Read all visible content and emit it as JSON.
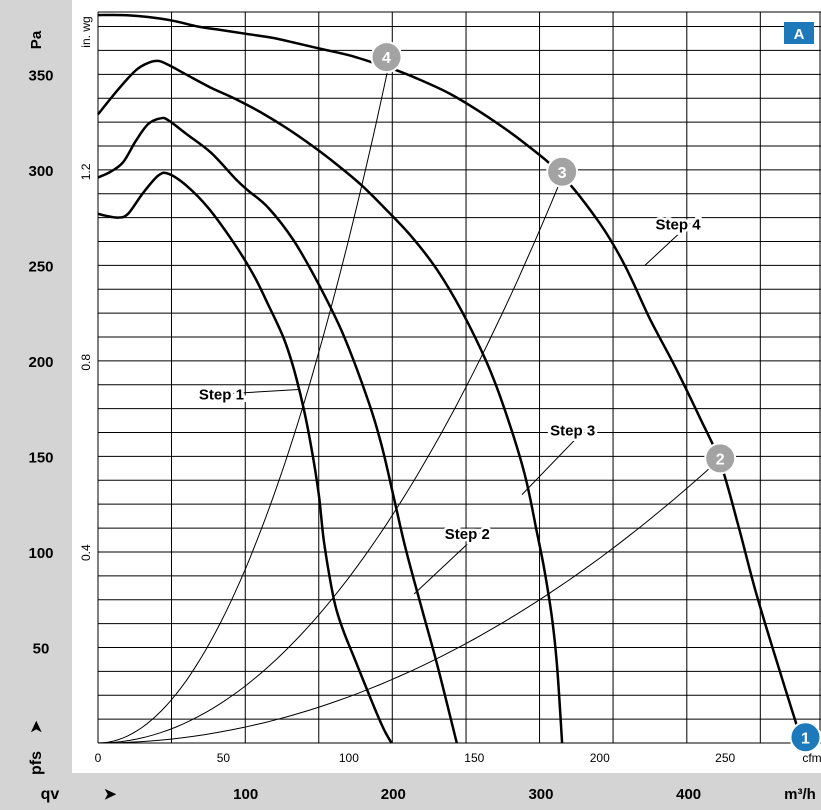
{
  "chart_data": {
    "type": "line",
    "panel_label": "A",
    "y_unit_left": "Pa",
    "y_unit_inner": "in. wg",
    "y_symbol": "pfs",
    "x_symbol": "qv",
    "x_unit_bottom": "m³/h",
    "x_unit_inner": "cfm",
    "arrow_glyph": "➤",
    "xlim_cfm": [
      0,
      285
    ],
    "ylim_pa": [
      0,
      380
    ],
    "y_ticks_pa": [
      {
        "value": 50,
        "label": "50"
      },
      {
        "value": 100,
        "label": "100"
      },
      {
        "value": 150,
        "label": "150"
      },
      {
        "value": 200,
        "label": "200"
      },
      {
        "value": 250,
        "label": "250"
      },
      {
        "value": 300,
        "label": "300"
      },
      {
        "value": 350,
        "label": "350"
      }
    ],
    "y_ticks_inwg": [
      {
        "value": 0.4,
        "label": "0.4"
      },
      {
        "value": 0.8,
        "label": "0.8"
      },
      {
        "value": 1.2,
        "label": "1.2"
      }
    ],
    "x_ticks_cfm": [
      {
        "value": 0,
        "label": "0"
      },
      {
        "value": 50,
        "label": "50"
      },
      {
        "value": 100,
        "label": "100"
      },
      {
        "value": 150,
        "label": "150"
      },
      {
        "value": 200,
        "label": "200"
      },
      {
        "value": 250,
        "label": "250"
      }
    ],
    "x_ticks_m3h": [
      {
        "value": 100,
        "label": "100"
      },
      {
        "value": 200,
        "label": "200"
      },
      {
        "value": 300,
        "label": "300"
      },
      {
        "value": 400,
        "label": "400"
      }
    ],
    "grid": true,
    "grid_x_cfm": [
      0,
      29.3,
      58.7,
      88,
      117.3,
      146.7,
      176,
      205.3,
      234.7,
      264
    ],
    "grid_y_pa": [
      0,
      12.5,
      25,
      37.5,
      50,
      62.5,
      75,
      87.5,
      100,
      112.5,
      125,
      137.5,
      150,
      162.5,
      175,
      187.5,
      200,
      212.5,
      225,
      237.5,
      250,
      262.5,
      275,
      287.5,
      300,
      312.5,
      325,
      337.5,
      350,
      362.5,
      375
    ],
    "series": [
      {
        "label": "Step 1",
        "x_cfm": [
          0,
          3,
          8,
          12,
          18,
          24,
          28,
          35,
          44,
          54,
          62,
          68,
          74,
          78,
          82,
          85,
          88,
          90,
          93,
          95,
          98,
          102,
          106,
          110,
          114,
          117
        ],
        "y_pa": [
          277,
          276,
          275,
          277,
          288,
          297,
          298,
          292,
          280,
          262,
          245,
          229,
          212,
          196,
          175,
          155,
          130,
          106,
          82,
          70,
          58,
          45,
          32,
          19,
          7,
          0
        ]
      },
      {
        "label": "Step 2",
        "x_cfm": [
          0,
          5,
          10,
          15,
          20,
          25,
          28,
          35,
          45,
          55,
          60,
          68,
          78,
          88,
          98,
          108,
          113,
          118,
          122,
          126,
          130,
          135,
          140,
          143
        ],
        "y_pa": [
          296,
          299,
          304,
          315,
          324,
          327,
          326,
          319,
          309,
          295,
          289,
          280,
          263,
          240,
          213,
          178,
          156,
          128,
          105,
          85,
          66,
          42,
          16,
          0
        ]
      },
      {
        "label": "Step 3",
        "x_cfm": [
          0,
          8,
          15,
          20,
          24,
          28,
          35,
          45,
          55,
          65,
          75,
          85,
          95,
          105,
          115,
          125,
          135,
          145,
          155,
          162,
          170,
          175,
          178,
          181,
          183,
          185
        ],
        "y_pa": [
          329,
          342,
          352,
          356,
          357,
          355,
          350,
          343,
          337,
          330,
          322,
          313,
          303,
          292,
          279,
          265,
          248,
          226,
          199,
          175,
          141,
          110,
          90,
          65,
          40,
          0
        ]
      },
      {
        "label": "Step 4",
        "x_cfm": [
          0,
          10,
          20,
          30,
          40,
          50,
          60,
          70,
          80,
          90,
          100,
          110,
          115,
          125,
          140,
          155,
          170,
          185,
          200,
          210,
          220,
          230,
          240,
          248,
          255,
          262,
          270,
          280
        ],
        "y_pa": [
          381,
          381,
          380,
          378,
          375,
          373,
          371,
          369,
          366,
          363,
          360,
          356,
          354,
          349,
          340,
          328,
          314,
          297,
          272,
          250,
          222,
          197,
          170,
          147,
          115,
          80,
          45,
          3
        ]
      }
    ],
    "system_curves": [
      {
        "k": 0.0264,
        "x_end": 117
      },
      {
        "k": 0.00866,
        "x_end": 186
      },
      {
        "k": 0.00242,
        "x_end": 250
      }
    ],
    "operating_points": [
      {
        "label": "1",
        "x_cfm": 282,
        "y_pa": 3,
        "color": "#1d79b9"
      },
      {
        "label": "2",
        "x_cfm": 248,
        "y_pa": 149,
        "color": "#a3a3a3"
      },
      {
        "label": "3",
        "x_cfm": 185,
        "y_pa": 299,
        "color": "#a3a3a3"
      },
      {
        "label": "4",
        "x_cfm": 115,
        "y_pa": 359,
        "color": "#a3a3a3"
      }
    ],
    "step_callouts": [
      {
        "label": "Step 1",
        "x_cfm": 80,
        "y_pa": 185,
        "lx": 50,
        "ly": 183
      },
      {
        "label": "Step 2",
        "x_cfm": 126,
        "y_pa": 78,
        "lx": 148,
        "ly": 110
      },
      {
        "label": "Step 3",
        "x_cfm": 169,
        "y_pa": 130,
        "lx": 190,
        "ly": 164
      },
      {
        "label": "Step 4",
        "x_cfm": 218,
        "y_pa": 250,
        "lx": 232,
        "ly": 272
      }
    ],
    "colors": {
      "axis_band": "#d4d4d4",
      "accent": "#1d79b9",
      "badge_grey": "#a3a3a3"
    }
  }
}
